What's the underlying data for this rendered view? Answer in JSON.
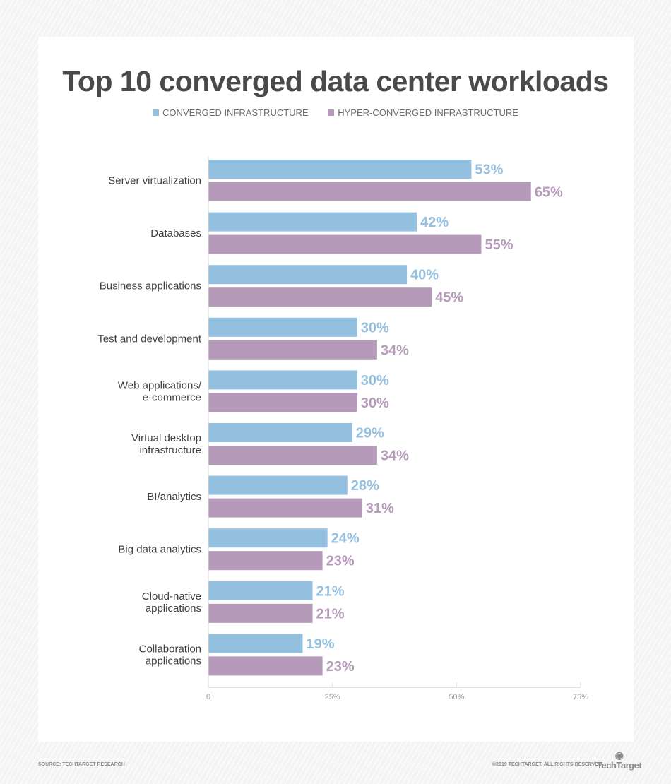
{
  "chart_data": {
    "type": "bar",
    "orientation": "horizontal",
    "title": "Top 10 converged data center workloads",
    "categories": [
      "Server virtualization",
      "Databases",
      "Business applications",
      "Test and development",
      "Web applications/\ne-commerce",
      "Virtual desktop\ninfrastructure",
      "BI/analytics",
      "Big data analytics",
      "Cloud-native\napplications",
      "Collaboration\napplications"
    ],
    "series": [
      {
        "name": "CONVERGED INFRASTRUCTURE",
        "color": "#94c0e0",
        "values": [
          53,
          42,
          40,
          30,
          30,
          29,
          28,
          24,
          21,
          19
        ]
      },
      {
        "name": "HYPER-CONVERGED INFRASTRUCTURE",
        "color": "#b69aba",
        "values": [
          65,
          55,
          45,
          34,
          30,
          34,
          31,
          23,
          21,
          23
        ]
      }
    ],
    "xlim": [
      0,
      75
    ],
    "xticks": [
      "0",
      "25%",
      "50%",
      "75%"
    ],
    "legend": "top",
    "grid": false
  },
  "footer": {
    "source": "SOURCE: TECHTARGET RESEARCH",
    "copyright": "©2019 TECHTARGET. ALL RIGHTS RESERVED",
    "logo": "TechTarget"
  }
}
